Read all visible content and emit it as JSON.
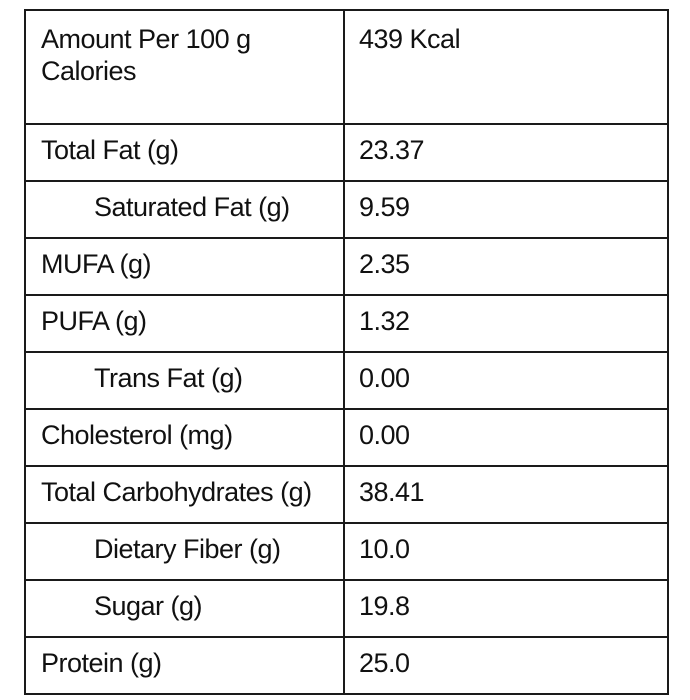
{
  "header": {
    "label_line1": "Amount Per 100 g",
    "label_line2": "Calories",
    "value": "439 Kcal"
  },
  "rows": [
    {
      "label": "Total Fat (g)",
      "value": "23.37",
      "indented": false
    },
    {
      "label": "Saturated Fat (g)",
      "value": "9.59",
      "indented": true
    },
    {
      "label": "MUFA (g)",
      "value": "2.35",
      "indented": false
    },
    {
      "label": "PUFA (g)",
      "value": "1.32",
      "indented": false
    },
    {
      "label": "Trans Fat (g)",
      "value": "0.00",
      "indented": true
    },
    {
      "label": "Cholesterol (mg)",
      "value": "0.00",
      "indented": false
    },
    {
      "label": "Total Carbohydrates (g)",
      "value": "38.41",
      "indented": false
    },
    {
      "label": "Dietary Fiber (g)",
      "value": "10.0",
      "indented": true
    },
    {
      "label": "Sugar (g)",
      "value": "19.8",
      "indented": true
    },
    {
      "label": "Protein (g)",
      "value": "25.0",
      "indented": false
    }
  ]
}
